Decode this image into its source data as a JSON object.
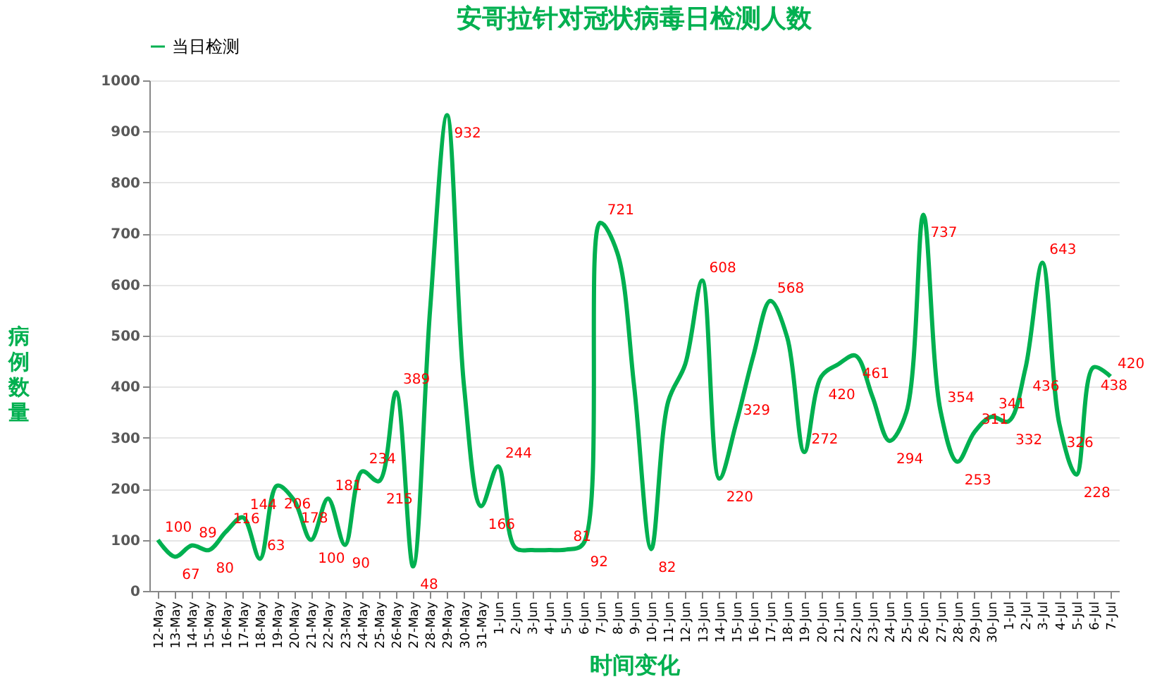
{
  "chart_data": {
    "type": "line",
    "title": "安哥拉针对冠状病毒日检测人数",
    "xlabel": "时间变化",
    "ylabel": "病例数量",
    "categories": [
      "12-May",
      "13-May",
      "14-May",
      "15-May",
      "16-May",
      "17-May",
      "18-May",
      "19-May",
      "20-May",
      "21-May",
      "22-May",
      "23-May",
      "24-May",
      "25-May",
      "26-May",
      "27-May",
      "28-May",
      "29-May",
      "30-May",
      "31-May",
      "1-Jun",
      "2-Jun",
      "3-Jun",
      "4-Jun",
      "5-Jun",
      "6-Jun",
      "7-Jun",
      "8-Jun",
      "9-Jun",
      "10-Jun",
      "11-Jun",
      "12-Jun",
      "13-Jun",
      "14-Jun",
      "15-Jun",
      "16-Jun",
      "17-Jun",
      "18-Jun",
      "19-Jun",
      "20-Jun",
      "21-Jun",
      "22-Jun",
      "23-Jun",
      "24-Jun",
      "25-Jun",
      "26-Jun",
      "27-Jun",
      "28-Jun",
      "29-Jun",
      "30-Jun",
      "1-Jul",
      "2-Jul",
      "3-Jul",
      "4-Jul",
      "5-Jul",
      "6-Jul",
      "7-Jul"
    ],
    "series": [
      {
        "name": "当日检测",
        "color": "#00b050",
        "values": [
          100,
          67,
          89,
          80,
          116,
          144,
          63,
          206,
          178,
          100,
          181,
          90,
          234,
          215,
          389,
          48,
          550,
          932,
          400,
          166,
          244,
          85,
          80,
          80,
          81,
          92,
          721,
          663,
          400,
          82,
          371,
          444,
          608,
          220,
          329,
          460,
          568,
          496,
          272,
          420,
          444,
          461,
          381,
          294,
          350,
          737,
          354,
          253,
          311,
          341,
          332,
          436,
          643,
          326,
          228,
          438,
          420
        ],
        "value_labels": [
          "100",
          "67",
          "89",
          "80",
          "116",
          "144",
          "63",
          "206",
          "178",
          "100",
          "181",
          "90",
          "234",
          "215",
          "389",
          "48",
          null,
          "932",
          null,
          "166",
          "244",
          null,
          null,
          null,
          "81",
          "92",
          "721",
          null,
          null,
          "82",
          null,
          null,
          "608",
          "220",
          "329",
          null,
          "568",
          null,
          "272",
          "420",
          null,
          "461",
          null,
          "294",
          null,
          "737",
          "354",
          "253",
          "311",
          "341",
          "332",
          "436",
          "643",
          "326",
          "228",
          "438",
          "420"
        ]
      }
    ],
    "ylim": [
      0,
      1000
    ],
    "yticks": [
      0,
      100,
      200,
      300,
      400,
      500,
      600,
      700,
      800,
      900,
      1000
    ],
    "grid": "y",
    "legend": "top",
    "marker": "none",
    "line_style": "solid"
  }
}
